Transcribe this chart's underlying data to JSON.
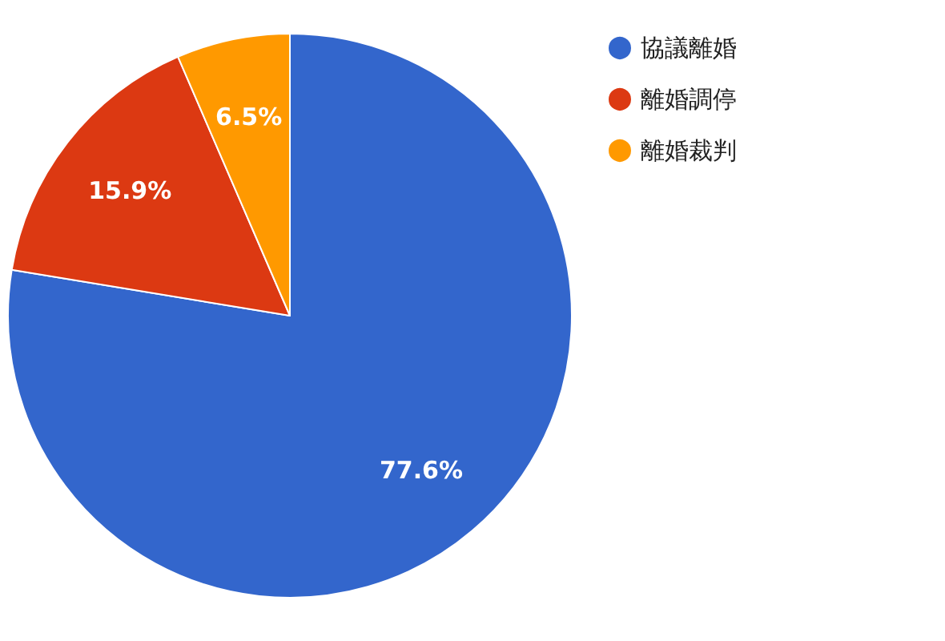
{
  "chart_data": {
    "type": "pie",
    "categories": [
      "協議離婚",
      "離婚調停",
      "離婚裁判"
    ],
    "values": [
      77.6,
      15.9,
      6.5
    ],
    "colors": [
      "#3366cc",
      "#dc3912",
      "#ff9900"
    ],
    "value_labels": [
      "77.6%",
      "15.9%",
      "6.5%"
    ],
    "legend": "top right"
  }
}
